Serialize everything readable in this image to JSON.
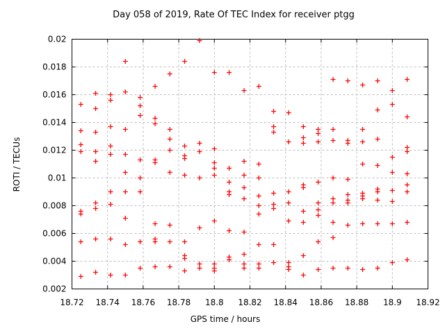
{
  "chart_data": {
    "type": "scatter",
    "title": "Day 058 of 2019, Rate Of TEC Index for receiver ptgg",
    "xlabel": "GPS time / hours",
    "ylabel": "ROTI / TECUs",
    "xlim": [
      18.72,
      18.92
    ],
    "ylim": [
      0.002,
      0.02
    ],
    "x_ticks": [
      18.72,
      18.74,
      18.76,
      18.78,
      18.8,
      18.82,
      18.84,
      18.86,
      18.88,
      18.9,
      18.92
    ],
    "x_tick_labels": [
      "18.72",
      "18.74",
      "18.76",
      "18.78",
      "18.8",
      "18.82",
      "18.84",
      "18.86",
      "18.88",
      "18.9",
      "18.92"
    ],
    "y_ticks": [
      0.002,
      0.004,
      0.006,
      0.008,
      0.01,
      0.012,
      0.014,
      0.016,
      0.018,
      0.02
    ],
    "y_tick_labels": [
      "0.002",
      "0.004",
      "0.006",
      "0.008",
      "0.01",
      "0.012",
      "0.014",
      "0.016",
      "0.018",
      "0.02"
    ],
    "grid": true,
    "legend_position": "none",
    "marker": "plus",
    "marker_color": "#ff0000",
    "grid_color": "#bbbbbb",
    "border_color": "#000000",
    "background_color": "#ffffff",
    "series_name": "ROTI",
    "epochs": [
      {
        "t": 18.725,
        "roti": [
          0.0153,
          0.0134,
          0.0124,
          0.0119,
          0.0076,
          0.0074,
          0.0054,
          0.0029
        ]
      },
      {
        "t": 18.7333,
        "roti": [
          0.0161,
          0.015,
          0.0133,
          0.0119,
          0.0112,
          0.0082,
          0.0078,
          0.0056,
          0.0032
        ]
      },
      {
        "t": 18.7417,
        "roti": [
          0.016,
          0.0156,
          0.0137,
          0.0123,
          0.0117,
          0.009,
          0.0081,
          0.0056,
          0.003
        ]
      },
      {
        "t": 18.75,
        "roti": [
          0.0184,
          0.0162,
          0.0135,
          0.0117,
          0.0104,
          0.009,
          0.0071,
          0.0052,
          0.003
        ]
      },
      {
        "t": 18.7583,
        "roti": [
          0.0158,
          0.0152,
          0.0145,
          0.0113,
          0.01,
          0.009,
          0.0054,
          0.0035
        ]
      },
      {
        "t": 18.7667,
        "roti": [
          0.0166,
          0.0143,
          0.0139,
          0.0113,
          0.0111,
          0.0067,
          0.0056,
          0.0054,
          0.0036
        ]
      },
      {
        "t": 18.775,
        "roti": [
          0.0175,
          0.0135,
          0.0128,
          0.012,
          0.0104,
          0.0066,
          0.0054,
          0.0036
        ]
      },
      {
        "t": 18.7833,
        "roti": [
          0.0184,
          0.0123,
          0.0116,
          0.0114,
          0.0102,
          0.0054,
          0.0044,
          0.0042,
          0.0033
        ]
      },
      {
        "t": 18.7917,
        "roti": [
          0.0199,
          0.0125,
          0.0119,
          0.01,
          0.0064,
          0.0038,
          0.0035
        ]
      },
      {
        "t": 18.8,
        "roti": [
          0.0176,
          0.0121,
          0.0111,
          0.0107,
          0.0102,
          0.0069,
          0.0038,
          0.0035,
          0.0033
        ]
      },
      {
        "t": 18.8083,
        "roti": [
          0.0176,
          0.0107,
          0.0097,
          0.009,
          0.0088,
          0.0062,
          0.0043,
          0.0041
        ]
      },
      {
        "t": 18.8167,
        "roti": [
          0.0163,
          0.0112,
          0.0102,
          0.0093,
          0.0085,
          0.0061,
          0.0045,
          0.0038,
          0.0035
        ]
      },
      {
        "t": 18.825,
        "roti": [
          0.0166,
          0.011,
          0.01,
          0.0087,
          0.008,
          0.0074,
          0.0052,
          0.0038,
          0.0035
        ]
      },
      {
        "t": 18.8333,
        "roti": [
          0.0148,
          0.0137,
          0.0133,
          0.0089,
          0.0081,
          0.0078,
          0.0052,
          0.0039
        ]
      },
      {
        "t": 18.8417,
        "roti": [
          0.0147,
          0.0126,
          0.009,
          0.0082,
          0.0069,
          0.0039,
          0.0036,
          0.0034
        ]
      },
      {
        "t": 18.85,
        "roti": [
          0.0137,
          0.0129,
          0.0125,
          0.0095,
          0.0093,
          0.0076,
          0.0068,
          0.0044,
          0.003
        ]
      },
      {
        "t": 18.8583,
        "roti": [
          0.0135,
          0.0132,
          0.0126,
          0.0097,
          0.0082,
          0.0077,
          0.0073,
          0.0054,
          0.0034
        ]
      },
      {
        "t": 18.8667,
        "roti": [
          0.0171,
          0.0135,
          0.0127,
          0.01,
          0.0085,
          0.0082,
          0.0068,
          0.0057,
          0.0035
        ]
      },
      {
        "t": 18.875,
        "roti": [
          0.017,
          0.0127,
          0.0125,
          0.0099,
          0.0088,
          0.0084,
          0.0082,
          0.0066,
          0.0035
        ]
      },
      {
        "t": 18.8833,
        "roti": [
          0.0167,
          0.0135,
          0.0126,
          0.011,
          0.0089,
          0.0087,
          0.0085,
          0.0067,
          0.0034
        ]
      },
      {
        "t": 18.8917,
        "roti": [
          0.017,
          0.0149,
          0.0128,
          0.0109,
          0.0092,
          0.009,
          0.0084,
          0.0067,
          0.0035
        ]
      },
      {
        "t": 18.9,
        "roti": [
          0.0163,
          0.0153,
          0.0115,
          0.0104,
          0.0091,
          0.0083,
          0.0067,
          0.0039
        ]
      },
      {
        "t": 18.9083,
        "roti": [
          0.0171,
          0.0144,
          0.0122,
          0.0119,
          0.0103,
          0.0095,
          0.009,
          0.0068,
          0.0041
        ]
      }
    ]
  }
}
